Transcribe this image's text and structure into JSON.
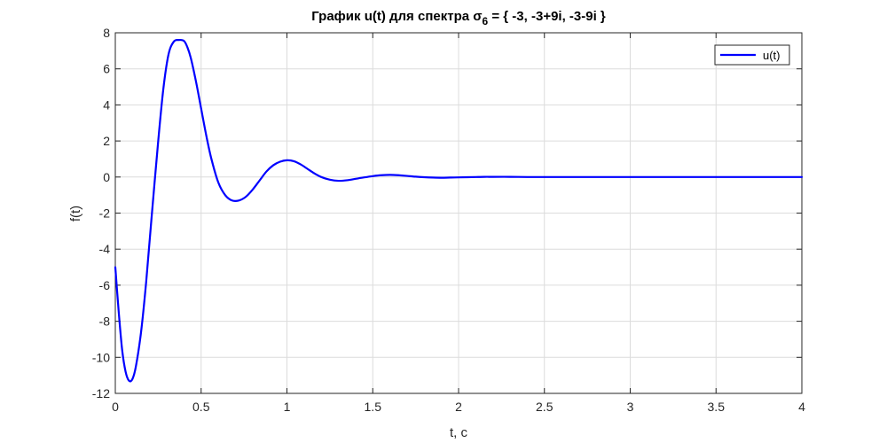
{
  "chart_data": {
    "type": "line",
    "title": "График u(t) для спектра σ",
    "title_sub": "6",
    "title_rest": " = { -3, -3+9i, -3-9i }",
    "xlabel": "t, c",
    "ylabel": "f(t)",
    "xlim": [
      0,
      4
    ],
    "ylim": [
      -12,
      8
    ],
    "xticks": [
      0,
      0.5,
      1,
      1.5,
      2,
      2.5,
      3,
      3.5,
      4
    ],
    "xtick_labels": [
      "0",
      "0.5",
      "1",
      "1.5",
      "2",
      "2.5",
      "3",
      "3.5",
      "4"
    ],
    "yticks": [
      -12,
      -10,
      -8,
      -6,
      -4,
      -2,
      0,
      2,
      4,
      6,
      8
    ],
    "ytick_labels": [
      "-12",
      "-10",
      "-8",
      "-6",
      "-4",
      "-2",
      "0",
      "2",
      "4",
      "6",
      "8"
    ],
    "grid": true,
    "legend_position": "top-right",
    "series": [
      {
        "name": "u(t)",
        "color": "#0000ff",
        "x": [
          0,
          0.02,
          0.04,
          0.06,
          0.08,
          0.1,
          0.12,
          0.15,
          0.18,
          0.21,
          0.25,
          0.28,
          0.31,
          0.34,
          0.37,
          0.4,
          0.42,
          0.44,
          0.47,
          0.5,
          0.53,
          0.56,
          0.6,
          0.64,
          0.68,
          0.72,
          0.76,
          0.8,
          0.84,
          0.88,
          0.92,
          0.96,
          1.0,
          1.04,
          1.08,
          1.12,
          1.16,
          1.2,
          1.25,
          1.3,
          1.35,
          1.4,
          1.45,
          1.5,
          1.55,
          1.6,
          1.65,
          1.7,
          1.75,
          1.8,
          1.85,
          1.9,
          1.95,
          2.0,
          2.05,
          2.1,
          2.15,
          2.2,
          2.3,
          2.4,
          2.5,
          2.6,
          2.7,
          2.8,
          3.0,
          3.2,
          3.4,
          3.6,
          3.8,
          4.0
        ],
        "y": [
          -5.0,
          -7.5,
          -9.6,
          -10.8,
          -11.3,
          -11.2,
          -10.5,
          -8.6,
          -5.8,
          -2.4,
          2.0,
          4.9,
          6.8,
          7.5,
          7.6,
          7.55,
          7.2,
          6.6,
          5.3,
          3.8,
          2.3,
          1.0,
          -0.3,
          -1.0,
          -1.3,
          -1.3,
          -1.1,
          -0.7,
          -0.2,
          0.3,
          0.65,
          0.85,
          0.93,
          0.88,
          0.7,
          0.45,
          0.2,
          0.0,
          -0.15,
          -0.21,
          -0.18,
          -0.1,
          -0.02,
          0.05,
          0.1,
          0.12,
          0.1,
          0.06,
          0.02,
          -0.01,
          -0.03,
          -0.04,
          -0.03,
          -0.02,
          -0.01,
          0.0,
          0.01,
          0.01,
          0.01,
          0.0,
          0.0,
          0.0,
          0.0,
          0.0,
          0.0,
          0.0,
          0.0,
          0.0,
          0.0,
          0.0
        ]
      }
    ]
  }
}
